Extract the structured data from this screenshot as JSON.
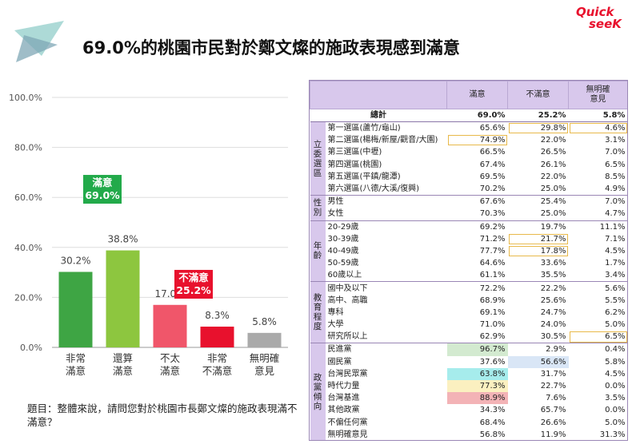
{
  "header": {
    "title": "69.0%的桃園市民對於鄭文燦的施政表現感到滿意",
    "logo_top": "Quick",
    "logo_bottom": "seeK"
  },
  "question": "題目：整體來說，請問您對於桃園市長鄭文燦的施政表現滿不滿意？",
  "chart_data": {
    "type": "bar",
    "categories": [
      "非常\n滿意",
      "還算\n滿意",
      "不太\n滿意",
      "非常\n不滿意",
      "無明確\n意見"
    ],
    "values": [
      30.2,
      38.8,
      17.0,
      8.3,
      5.8
    ],
    "value_labels": [
      "30.2%",
      "38.8%",
      "17.0%",
      "8.3%",
      "5.8%"
    ],
    "colors": [
      "#3ea544",
      "#8dc63f",
      "#f0566a",
      "#e8112d",
      "#aaaaaa"
    ],
    "ylim": [
      0,
      100
    ],
    "yticks": [
      "0.0%",
      "20.0%",
      "40.0%",
      "60.0%",
      "80.0%",
      "100.0%"
    ],
    "grid": true,
    "annotations": [
      {
        "text": "滿意\n69.0%",
        "color": "#22aa4a"
      },
      {
        "text": "不滿意\n25.2%",
        "color": "#e8112d"
      }
    ]
  },
  "table": {
    "columns": [
      "",
      "",
      "滿意",
      "不滿意",
      "無明確\n意見"
    ],
    "total": {
      "label": "總計",
      "values": [
        "69.0%",
        "25.2%",
        "5.8%"
      ]
    },
    "groups": [
      {
        "name": "立委選區",
        "rows": [
          {
            "label": "第一選區(蘆竹/龜山)",
            "values": [
              "65.6%",
              "29.8%",
              "4.6%"
            ]
          },
          {
            "label": "第二選區(楊梅/新屋/觀音/大園)",
            "values": [
              "74.9%",
              "22.0%",
              "3.1%"
            ]
          },
          {
            "label": "第三選區(中壢)",
            "values": [
              "66.5%",
              "26.5%",
              "7.0%"
            ]
          },
          {
            "label": "第四選區(桃園)",
            "values": [
              "67.4%",
              "26.1%",
              "6.5%"
            ]
          },
          {
            "label": "第五選區(平鎮/龍潭)",
            "values": [
              "69.5%",
              "22.0%",
              "8.5%"
            ]
          },
          {
            "label": "第六選區(八德/大溪/復興)",
            "values": [
              "70.2%",
              "25.0%",
              "4.9%"
            ]
          }
        ]
      },
      {
        "name": "性別",
        "rows": [
          {
            "label": "男性",
            "values": [
              "67.6%",
              "25.4%",
              "7.0%"
            ]
          },
          {
            "label": "女性",
            "values": [
              "70.3%",
              "25.0%",
              "4.7%"
            ]
          }
        ]
      },
      {
        "name": "年齡",
        "rows": [
          {
            "label": "20-29歲",
            "values": [
              "69.2%",
              "19.7%",
              "11.1%"
            ]
          },
          {
            "label": "30-39歲",
            "values": [
              "71.2%",
              "21.7%",
              "7.1%"
            ]
          },
          {
            "label": "40-49歲",
            "values": [
              "77.7%",
              "17.8%",
              "4.5%"
            ]
          },
          {
            "label": "50-59歲",
            "values": [
              "64.6%",
              "33.6%",
              "1.7%"
            ]
          },
          {
            "label": "60歲以上",
            "values": [
              "61.1%",
              "35.5%",
              "3.4%"
            ]
          }
        ]
      },
      {
        "name": "教育程度",
        "rows": [
          {
            "label": "國中及以下",
            "values": [
              "72.2%",
              "22.2%",
              "5.6%"
            ]
          },
          {
            "label": "高中、高職",
            "values": [
              "68.9%",
              "25.6%",
              "5.5%"
            ]
          },
          {
            "label": "專科",
            "values": [
              "69.1%",
              "24.7%",
              "6.2%"
            ]
          },
          {
            "label": "大學",
            "values": [
              "71.0%",
              "24.0%",
              "5.0%"
            ]
          },
          {
            "label": "研究所以上",
            "values": [
              "62.9%",
              "30.5%",
              "6.5%"
            ]
          }
        ]
      },
      {
        "name": "政黨傾向",
        "rows": [
          {
            "label": "民進黨",
            "values": [
              "96.7%",
              "2.9%",
              "0.4%"
            ]
          },
          {
            "label": "國民黨",
            "values": [
              "37.6%",
              "56.6%",
              "5.8%"
            ]
          },
          {
            "label": "台灣民眾黨",
            "values": [
              "63.8%",
              "31.7%",
              "4.5%"
            ]
          },
          {
            "label": "時代力量",
            "values": [
              "77.3%",
              "22.7%",
              "0.0%"
            ]
          },
          {
            "label": "台灣基進",
            "values": [
              "88.9%",
              "7.6%",
              "3.5%"
            ]
          },
          {
            "label": "其他政黨",
            "values": [
              "34.3%",
              "65.7%",
              "0.0%"
            ]
          },
          {
            "label": "不偏任何黨",
            "values": [
              "68.4%",
              "26.6%",
              "5.0%"
            ]
          },
          {
            "label": "無明確意見",
            "values": [
              "56.8%",
              "11.9%",
              "31.3%"
            ]
          }
        ]
      }
    ],
    "highlight_colors": {
      "dpp": "#d3ead0",
      "kmt": "#d9e6f6",
      "tpp": "#a6ecec",
      "npp": "#fbf0c0",
      "tsp": "#f3b3b6"
    }
  }
}
